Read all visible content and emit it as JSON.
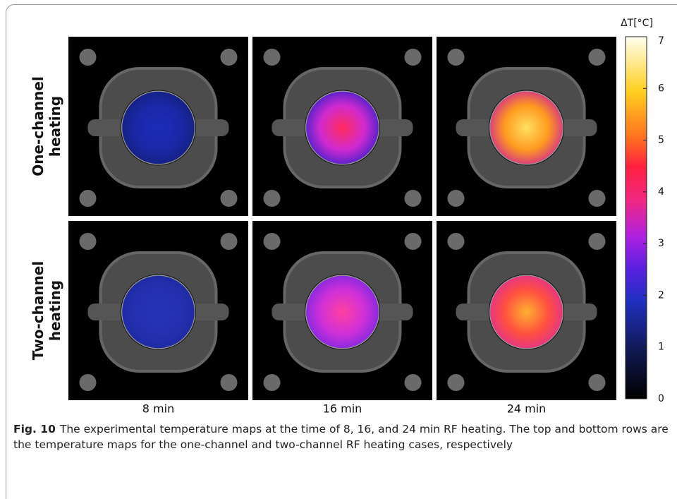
{
  "figure": {
    "row_labels": [
      [
        "One-channel",
        "heating"
      ],
      [
        "Two-channel",
        "heating"
      ]
    ],
    "column_labels": [
      "8 min",
      "16 min",
      "24 min"
    ],
    "colorbar": {
      "label": "ΔT[°C]",
      "lim": [
        0,
        7
      ],
      "ticks": [
        0,
        1,
        2,
        3,
        4,
        5,
        6,
        7
      ]
    },
    "caption": {
      "label": "Fig. 10",
      "text": "The experimental temperature maps at the time of 8, 16, and 24 min RF heating. The top and bottom rows are the temperature maps for the one-channel and two-channel RF heating cases, respectively"
    }
  }
}
